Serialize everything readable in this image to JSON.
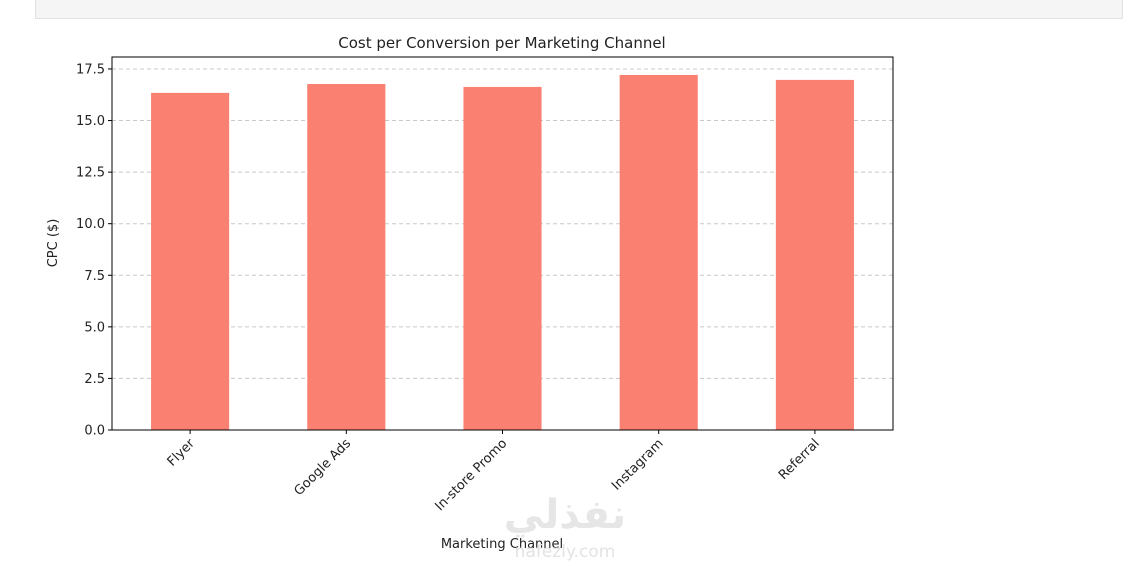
{
  "chart_data": {
    "type": "bar",
    "title": "Cost per Conversion per Marketing Channel",
    "xlabel": "Marketing Channel",
    "ylabel": "CPC ($)",
    "categories": [
      "Flyer",
      "Google Ads",
      "In-store Promo",
      "Instagram",
      "Referral"
    ],
    "values": [
      16.34,
      16.77,
      16.63,
      17.21,
      16.97
    ],
    "color": "#fa8072",
    "ylim": [
      0,
      18.08
    ],
    "yticks": [
      {
        "value": 0,
        "label": "0.0"
      },
      2.5,
      {
        "value": 5,
        "label": "5.0"
      },
      7.5,
      {
        "value": 10,
        "label": "10.0"
      },
      12.5,
      {
        "value": 15,
        "label": "15.0"
      },
      17.5
    ],
    "grid": true,
    "watermark": [
      "نفذلي",
      "nafezly.com"
    ]
  }
}
